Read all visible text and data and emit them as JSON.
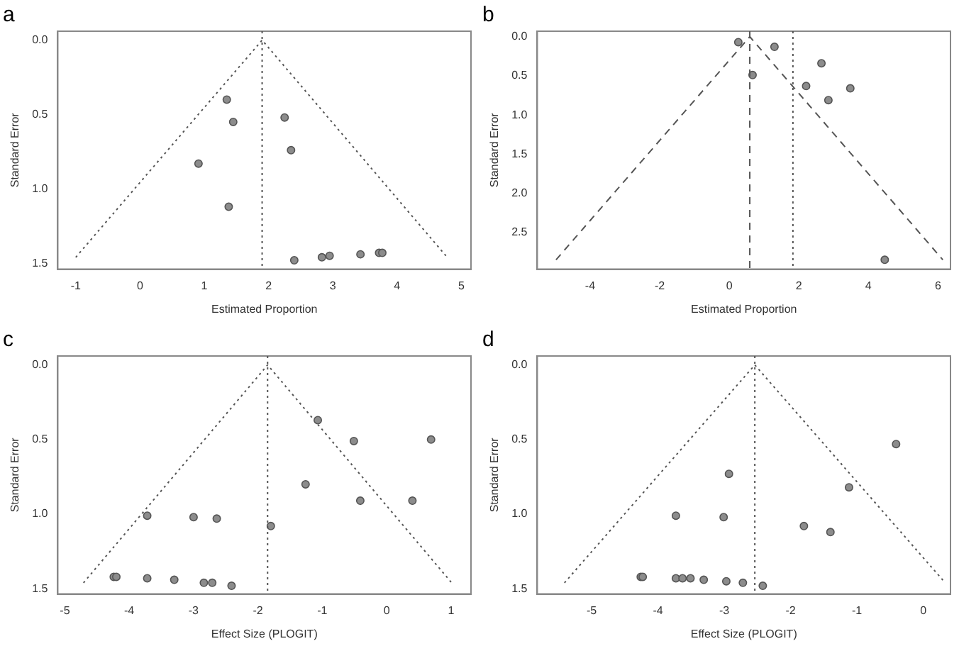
{
  "chart_data": [
    {
      "type": "scatter",
      "title": "a",
      "xlabel": "Estimated Proportion",
      "ylabel": "Standard Error",
      "xlim": [
        -1.28,
        5.15
      ],
      "ylim": [
        1.54,
        -0.06
      ],
      "xticks": [
        -1,
        0,
        1,
        2,
        3,
        4,
        5
      ],
      "yticks": [
        {
          "value": 0,
          "label": "0.0"
        },
        {
          "value": 0.5,
          "label": "0.5"
        },
        {
          "value": 1,
          "label": "1.0"
        },
        {
          "value": 1.5,
          "label": "1.5"
        }
      ],
      "grid": false,
      "legend": false,
      "series": [
        {
          "type": "scatter",
          "color": "#8c8c8c",
          "marker": "circle",
          "x": [
            1.35,
            1.45,
            0.91,
            1.38,
            2.25,
            2.35,
            2.4,
            2.83,
            2.95,
            3.43,
            3.72,
            3.77
          ],
          "values": [
            0.4,
            0.55,
            0.83,
            1.12,
            0.52,
            0.74,
            1.48,
            1.46,
            1.45,
            1.44,
            1.43,
            1.43
          ]
        },
        {
          "type": "line",
          "color": "#555555",
          "marker": "none",
          "line_style": "dotted",
          "x": [
            -1.0,
            1.9,
            4.78
          ],
          "values": [
            1.46,
            0,
            1.46
          ]
        }
      ],
      "ref_lines": [
        {
          "axis": "x",
          "value": 1.9,
          "line_style": "dotted",
          "color": "#555555"
        }
      ]
    },
    {
      "type": "scatter",
      "title": "b",
      "xlabel": "Estimated Proportion",
      "ylabel": "Standard Error",
      "xlim": [
        -5.52,
        6.36
      ],
      "ylim": [
        2.97,
        -0.07
      ],
      "xticks": [
        -4,
        -2,
        0,
        2,
        4,
        6
      ],
      "yticks": [
        {
          "value": 0,
          "label": "0.0"
        },
        {
          "value": 0.5,
          "label": "0.5"
        },
        {
          "value": 1,
          "label": "1.0"
        },
        {
          "value": 1.5,
          "label": "1.5"
        },
        {
          "value": 2,
          "label": "2.0"
        },
        {
          "value": 2.5,
          "label": "2.5"
        }
      ],
      "grid": false,
      "legend": false,
      "series": [
        {
          "type": "scatter",
          "color": "#8c8c8c",
          "marker": "circle",
          "x": [
            0.26,
            1.3,
            0.67,
            2.65,
            2.21,
            3.48,
            2.85,
            4.47
          ],
          "values": [
            0.07,
            0.13,
            0.49,
            0.34,
            0.63,
            0.66,
            0.81,
            2.85
          ]
        },
        {
          "type": "line",
          "color": "#555555",
          "marker": "none",
          "line_style": "dashed",
          "x": [
            -4.98,
            0.59,
            6.14
          ],
          "values": [
            2.85,
            0,
            2.85
          ]
        }
      ],
      "ref_lines": [
        {
          "axis": "x",
          "value": 0.59,
          "line_style": "dashed",
          "color": "#555555"
        },
        {
          "axis": "x",
          "value": 1.83,
          "line_style": "dotted",
          "color": "#555555"
        }
      ]
    },
    {
      "type": "scatter",
      "title": "c",
      "xlabel": "Effect Size (PLOGIT)",
      "ylabel": "Standard Error",
      "xlim": [
        -5.11,
        1.31
      ],
      "ylim": [
        1.535,
        -0.06
      ],
      "xticks": [
        -5,
        -4,
        -3,
        -2,
        -1,
        0,
        1
      ],
      "yticks": [
        {
          "value": 0,
          "label": "0.0"
        },
        {
          "value": 0.5,
          "label": "0.5"
        },
        {
          "value": 1,
          "label": "1.0"
        },
        {
          "value": 1.5,
          "label": "1.5"
        }
      ],
      "grid": false,
      "legend": false,
      "series": [
        {
          "type": "scatter",
          "color": "#8c8c8c",
          "marker": "circle",
          "x": [
            -1.07,
            -0.51,
            0.69,
            -1.26,
            -0.41,
            0.4,
            -3.72,
            -3.0,
            -2.64,
            -1.8,
            -4.24,
            -4.2,
            -3.72,
            -3.3,
            -2.84,
            -2.71,
            -2.41
          ],
          "values": [
            0.37,
            0.51,
            0.5,
            0.8,
            0.91,
            0.91,
            1.01,
            1.02,
            1.03,
            1.08,
            1.42,
            1.42,
            1.43,
            1.44,
            1.46,
            1.46,
            1.48
          ]
        },
        {
          "type": "line",
          "color": "#555555",
          "marker": "none",
          "line_style": "dotted",
          "x": [
            -4.71,
            -1.85,
            1.01
          ],
          "values": [
            1.46,
            0,
            1.46
          ]
        }
      ],
      "ref_lines": [
        {
          "axis": "x",
          "value": -1.85,
          "line_style": "dotted",
          "color": "#555555"
        }
      ]
    },
    {
      "type": "scatter",
      "title": "d",
      "xlabel": "Effect Size (PLOGIT)",
      "ylabel": "Standard Error",
      "xlim": [
        -5.82,
        0.41
      ],
      "ylim": [
        1.535,
        -0.06
      ],
      "xticks": [
        -5,
        -4,
        -3,
        -2,
        -1,
        0
      ],
      "yticks": [
        {
          "value": 0,
          "label": "0.0"
        },
        {
          "value": 0.5,
          "label": "0.5"
        },
        {
          "value": 1,
          "label": "1.0"
        },
        {
          "value": 1.5,
          "label": "1.5"
        }
      ],
      "grid": false,
      "legend": false,
      "series": [
        {
          "type": "scatter",
          "color": "#8c8c8c",
          "marker": "circle",
          "x": [
            -0.41,
            -1.12,
            -2.93,
            -3.73,
            -3.01,
            -1.8,
            -1.4,
            -4.26,
            -4.23,
            -3.73,
            -3.63,
            -3.51,
            -3.31,
            -2.97,
            -2.72,
            -2.42
          ],
          "values": [
            0.53,
            0.82,
            0.73,
            1.01,
            1.02,
            1.08,
            1.12,
            1.42,
            1.42,
            1.43,
            1.43,
            1.43,
            1.44,
            1.45,
            1.46,
            1.48
          ]
        },
        {
          "type": "line",
          "color": "#555555",
          "marker": "none",
          "line_style": "dotted",
          "x": [
            -5.41,
            -2.54,
            0.33
          ],
          "values": [
            1.46,
            0,
            1.46
          ]
        }
      ],
      "ref_lines": [
        {
          "axis": "x",
          "value": -2.54,
          "line_style": "dotted",
          "color": "#555555"
        }
      ]
    }
  ]
}
